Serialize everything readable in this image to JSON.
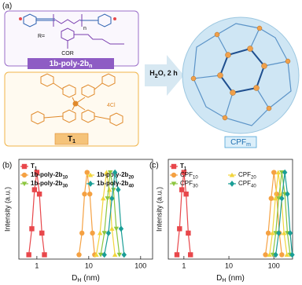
{
  "panel_labels": [
    "(a)",
    "(b)",
    "(c)"
  ],
  "scheme": {
    "polymer_label": {
      "text": "1b-poly-2b",
      "sub": "n"
    },
    "polymer_groups": [
      "COR",
      "R=",
      "n"
    ],
    "linker_label": {
      "text": "T",
      "sub": "1"
    },
    "linker_groups": [
      "4Cl"
    ],
    "reagent": [
      "H",
      "2",
      "O, 2 h"
    ],
    "product_label": {
      "text": "CPF",
      "sub": "m"
    }
  },
  "chart_data": [
    {
      "type": "line",
      "xscale": "log",
      "ylabel": "Intensity (a.u.)",
      "xlabel": [
        "D",
        "H",
        " (nm)"
      ],
      "xlim": [
        0.45,
        170
      ],
      "xticks": [
        1,
        10,
        100
      ],
      "ylim": [
        0,
        1.15
      ],
      "series": [
        {
          "name": "T",
          "name_sub": "1",
          "color": "#e8474b",
          "marker": "square",
          "x": [
            0.7,
            0.8,
            0.9,
            1.0,
            1.12,
            1.25,
            1.4
          ],
          "values": [
            0.05,
            0.35,
            0.8,
            1.0,
            0.75,
            0.3,
            0.05
          ]
        },
        {
          "name": "1b-poly-2b",
          "name_sub": "10",
          "color": "#f5a142",
          "marker": "circle",
          "x": [
            6.5,
            7.4,
            8.3,
            9.3,
            10.5,
            11.8,
            13
          ],
          "values": [
            0.05,
            0.3,
            0.75,
            1.0,
            0.75,
            0.3,
            0.05
          ]
        },
        {
          "name": "1b-poly-2b",
          "name_sub": "20",
          "color": "#f2d53c",
          "marker": "triangle",
          "x": [
            14,
            16.5,
            19,
            22,
            25,
            28,
            32
          ],
          "values": [
            0.05,
            0.3,
            0.7,
            1.0,
            0.8,
            0.35,
            0.05
          ]
        },
        {
          "name": "1b-poly-2b",
          "name_sub": "30",
          "color": "#8cc63f",
          "marker": "triangle-down",
          "x": [
            17,
            20,
            23,
            26,
            30,
            34,
            39
          ],
          "values": [
            0.05,
            0.3,
            0.7,
            1.0,
            0.8,
            0.35,
            0.05
          ]
        },
        {
          "name": "1b-poly-2b",
          "name_sub": "40",
          "color": "#1a9e96",
          "marker": "diamond",
          "x": [
            20,
            24,
            28,
            32,
            37,
            42,
            48
          ],
          "values": [
            0.05,
            0.3,
            0.7,
            1.0,
            0.8,
            0.35,
            0.05
          ]
        }
      ]
    },
    {
      "type": "line",
      "xscale": "log",
      "ylabel": "Intensity (a.u.)",
      "xlabel": [
        "D",
        "H",
        " (nm)"
      ],
      "xlim": [
        0.45,
        260
      ],
      "xticks": [
        1,
        10,
        100
      ],
      "ylim": [
        0,
        1.15
      ],
      "series": [
        {
          "name": "T",
          "name_sub": "1",
          "color": "#e8474b",
          "marker": "square",
          "x": [
            0.7,
            0.8,
            0.9,
            1.0,
            1.12,
            1.25,
            1.4
          ],
          "values": [
            0.05,
            0.35,
            0.8,
            1.0,
            0.75,
            0.3,
            0.05
          ]
        },
        {
          "name": "CPF",
          "name_sub": "10",
          "color": "#f5a142",
          "marker": "circle",
          "x": [
            65,
            75,
            87,
            100,
            115,
            132,
            150
          ],
          "values": [
            0.05,
            0.3,
            0.7,
            1.0,
            0.75,
            0.3,
            0.05
          ]
        },
        {
          "name": "CPF",
          "name_sub": "20",
          "color": "#f2d53c",
          "marker": "triangle",
          "x": [
            80,
            93,
            108,
            125,
            145,
            168,
            195
          ],
          "values": [
            0.05,
            0.3,
            0.7,
            1.0,
            0.75,
            0.3,
            0.05
          ]
        },
        {
          "name": "CPF",
          "name_sub": "30",
          "color": "#8cc63f",
          "marker": "triangle-down",
          "x": [
            95,
            110,
            128,
            150,
            175,
            200,
            230
          ],
          "values": [
            0.05,
            0.3,
            0.7,
            1.0,
            0.75,
            0.3,
            0.05
          ]
        },
        {
          "name": "CPF",
          "name_sub": "40",
          "color": "#1a9e96",
          "marker": "diamond",
          "x": [
            110,
            128,
            150,
            175,
            200,
            230,
            255
          ],
          "values": [
            0.05,
            0.3,
            0.7,
            1.0,
            0.75,
            0.3,
            0.05
          ]
        }
      ]
    }
  ]
}
